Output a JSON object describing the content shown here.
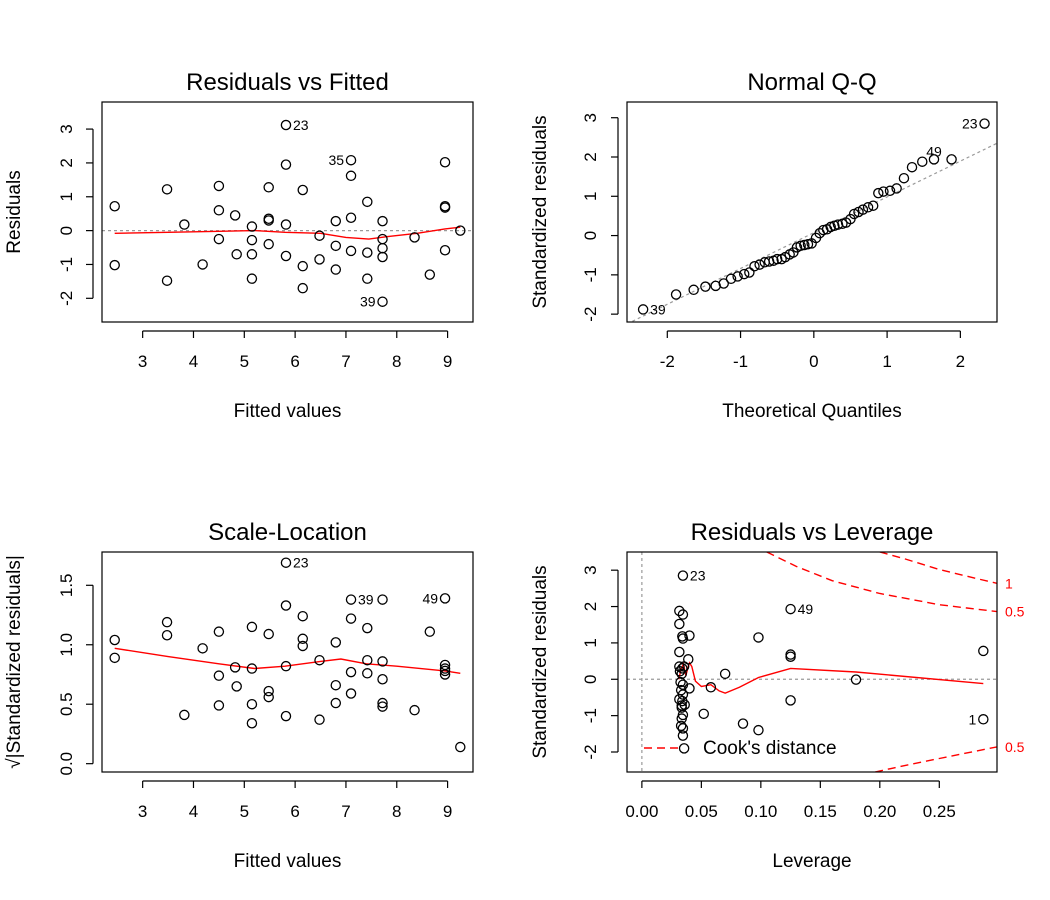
{
  "chart_data": [
    {
      "type": "scatter",
      "title": "Residuals vs Fitted",
      "xlabel": "Fitted values",
      "ylabel": "Residuals",
      "xlim": [
        2.2,
        9.5
      ],
      "ylim": [
        -2.7,
        3.8
      ],
      "xticks": [
        "3",
        "4",
        "5",
        "6",
        "7",
        "8",
        "9"
      ],
      "xtick_values": [
        3,
        4,
        5,
        6,
        7,
        8,
        9
      ],
      "yticks": [
        "-2",
        "-1",
        "0",
        "1",
        "2",
        "3"
      ],
      "ytick_values": [
        -2,
        -1,
        0,
        1,
        2,
        3
      ],
      "reference_line": {
        "type": "horizontal",
        "y": 0
      },
      "points": [
        [
          2.45,
          0.72
        ],
        [
          2.45,
          -1.02
        ],
        [
          3.48,
          1.22
        ],
        [
          3.48,
          -1.48
        ],
        [
          3.82,
          0.18
        ],
        [
          4.18,
          -1.0
        ],
        [
          4.5,
          1.32
        ],
        [
          4.5,
          0.6
        ],
        [
          4.5,
          -0.25
        ],
        [
          4.82,
          0.45
        ],
        [
          4.85,
          -0.7
        ],
        [
          5.15,
          0.12
        ],
        [
          5.15,
          -0.28
        ],
        [
          5.15,
          -0.7
        ],
        [
          5.15,
          -1.42
        ],
        [
          5.48,
          1.28
        ],
        [
          5.48,
          0.35
        ],
        [
          5.48,
          0.3
        ],
        [
          5.48,
          -0.4
        ],
        [
          5.82,
          3.12
        ],
        [
          5.82,
          1.95
        ],
        [
          5.82,
          0.18
        ],
        [
          5.82,
          -0.75
        ],
        [
          6.15,
          1.2
        ],
        [
          6.15,
          -1.05
        ],
        [
          6.15,
          -1.7
        ],
        [
          6.48,
          -0.15
        ],
        [
          6.48,
          -0.85
        ],
        [
          6.8,
          0.28
        ],
        [
          6.8,
          -0.45
        ],
        [
          6.8,
          -1.15
        ],
        [
          7.1,
          2.08
        ],
        [
          7.1,
          1.62
        ],
        [
          7.1,
          0.38
        ],
        [
          7.1,
          -0.6
        ],
        [
          7.42,
          0.85
        ],
        [
          7.42,
          -0.65
        ],
        [
          7.42,
          -1.42
        ],
        [
          7.72,
          0.28
        ],
        [
          7.72,
          -0.25
        ],
        [
          7.72,
          -0.52
        ],
        [
          7.72,
          -0.78
        ],
        [
          7.72,
          -2.1
        ],
        [
          8.35,
          -0.2
        ],
        [
          8.65,
          -1.3
        ],
        [
          8.95,
          2.02
        ],
        [
          8.95,
          0.72
        ],
        [
          8.95,
          0.68
        ],
        [
          8.95,
          -0.58
        ],
        [
          9.25,
          0.0
        ]
      ],
      "smoother": [
        [
          2.45,
          -0.08
        ],
        [
          3.5,
          -0.05
        ],
        [
          4.5,
          -0.02
        ],
        [
          5.2,
          0.0
        ],
        [
          5.8,
          -0.05
        ],
        [
          6.5,
          -0.08
        ],
        [
          7.0,
          -0.2
        ],
        [
          7.45,
          -0.25
        ],
        [
          7.8,
          -0.18
        ],
        [
          8.4,
          -0.08
        ],
        [
          8.95,
          0.05
        ],
        [
          9.25,
          0.1
        ]
      ],
      "point_labels": [
        {
          "text": "23",
          "x": 5.82,
          "y": 3.12,
          "side": "right"
        },
        {
          "text": "35",
          "x": 7.1,
          "y": 2.08,
          "side": "left"
        },
        {
          "text": "39",
          "x": 7.72,
          "y": -2.1,
          "side": "left"
        }
      ]
    },
    {
      "type": "scatter",
      "title": "Normal Q-Q",
      "xlabel": "Theoretical Quantiles",
      "ylabel": "Standardized residuals",
      "xlim": [
        -2.55,
        2.5
      ],
      "ylim": [
        -2.2,
        3.4
      ],
      "xticks": [
        "-2",
        "-1",
        "0",
        "1",
        "2"
      ],
      "xtick_values": [
        -2,
        -1,
        0,
        1,
        2
      ],
      "yticks": [
        "-2",
        "-1",
        "0",
        "1",
        "2",
        "3"
      ],
      "ytick_values": [
        -2,
        -1,
        0,
        1,
        2,
        3
      ],
      "reference_line": {
        "type": "diagonal",
        "x1": -2.55,
        "y1": -2.25,
        "x2": 2.5,
        "y2": 2.35
      },
      "points": [
        [
          -2.33,
          -1.88
        ],
        [
          -1.88,
          -1.5
        ],
        [
          -1.64,
          -1.38
        ],
        [
          -1.48,
          -1.3
        ],
        [
          -1.34,
          -1.28
        ],
        [
          -1.23,
          -1.22
        ],
        [
          -1.13,
          -1.1
        ],
        [
          -1.04,
          -1.04
        ],
        [
          -0.95,
          -0.98
        ],
        [
          -0.88,
          -0.94
        ],
        [
          -0.81,
          -0.78
        ],
        [
          -0.74,
          -0.74
        ],
        [
          -0.67,
          -0.68
        ],
        [
          -0.61,
          -0.66
        ],
        [
          -0.55,
          -0.64
        ],
        [
          -0.5,
          -0.6
        ],
        [
          -0.44,
          -0.6
        ],
        [
          -0.39,
          -0.55
        ],
        [
          -0.33,
          -0.48
        ],
        [
          -0.28,
          -0.43
        ],
        [
          -0.23,
          -0.3
        ],
        [
          -0.18,
          -0.26
        ],
        [
          -0.13,
          -0.24
        ],
        [
          -0.08,
          -0.22
        ],
        [
          -0.03,
          -0.2
        ],
        [
          0.03,
          -0.06
        ],
        [
          0.08,
          0.06
        ],
        [
          0.13,
          0.14
        ],
        [
          0.18,
          0.16
        ],
        [
          0.23,
          0.22
        ],
        [
          0.28,
          0.25
        ],
        [
          0.33,
          0.28
        ],
        [
          0.39,
          0.3
        ],
        [
          0.44,
          0.33
        ],
        [
          0.5,
          0.42
        ],
        [
          0.55,
          0.55
        ],
        [
          0.61,
          0.6
        ],
        [
          0.67,
          0.66
        ],
        [
          0.74,
          0.72
        ],
        [
          0.81,
          0.76
        ],
        [
          0.88,
          1.08
        ],
        [
          0.95,
          1.12
        ],
        [
          1.04,
          1.14
        ],
        [
          1.13,
          1.2
        ],
        [
          1.23,
          1.46
        ],
        [
          1.34,
          1.74
        ],
        [
          1.48,
          1.88
        ],
        [
          1.64,
          1.94
        ],
        [
          1.88,
          1.94
        ],
        [
          2.33,
          2.85
        ]
      ],
      "point_labels": [
        {
          "text": "23",
          "x": 2.33,
          "y": 2.85,
          "side": "left"
        },
        {
          "text": "49",
          "x": 1.64,
          "y": 1.94,
          "side": "above"
        },
        {
          "text": "39",
          "x": -2.33,
          "y": -1.88,
          "side": "right"
        }
      ]
    },
    {
      "type": "scatter",
      "title": "Scale-Location",
      "xlabel": "Fitted values",
      "ylabel": "√|Standardized residuals|",
      "xlim": [
        2.2,
        9.5
      ],
      "ylim": [
        -0.07,
        1.78
      ],
      "xticks": [
        "3",
        "4",
        "5",
        "6",
        "7",
        "8",
        "9"
      ],
      "xtick_values": [
        3,
        4,
        5,
        6,
        7,
        8,
        9
      ],
      "yticks": [
        "0.0",
        "0.5",
        "1.0",
        "1.5"
      ],
      "ytick_values": [
        0.0,
        0.5,
        1.0,
        1.5
      ],
      "points": [
        [
          2.45,
          1.04
        ],
        [
          2.45,
          0.89
        ],
        [
          3.48,
          1.19
        ],
        [
          3.48,
          1.08
        ],
        [
          3.82,
          0.41
        ],
        [
          4.18,
          0.97
        ],
        [
          4.5,
          1.11
        ],
        [
          4.5,
          0.74
        ],
        [
          4.5,
          0.49
        ],
        [
          4.82,
          0.81
        ],
        [
          4.85,
          0.65
        ],
        [
          5.15,
          0.34
        ],
        [
          5.15,
          0.5
        ],
        [
          5.15,
          0.8
        ],
        [
          5.15,
          1.15
        ],
        [
          5.48,
          1.09
        ],
        [
          5.48,
          0.61
        ],
        [
          5.48,
          0.56
        ],
        [
          5.82,
          1.69
        ],
        [
          5.82,
          1.33
        ],
        [
          5.82,
          0.82
        ],
        [
          5.82,
          0.4
        ],
        [
          6.15,
          1.24
        ],
        [
          6.15,
          1.05
        ],
        [
          6.15,
          0.99
        ],
        [
          6.48,
          0.87
        ],
        [
          6.48,
          0.37
        ],
        [
          6.8,
          1.02
        ],
        [
          6.8,
          0.66
        ],
        [
          6.8,
          0.51
        ],
        [
          7.1,
          1.38
        ],
        [
          7.1,
          1.22
        ],
        [
          7.1,
          0.77
        ],
        [
          7.1,
          0.59
        ],
        [
          7.42,
          1.14
        ],
        [
          7.42,
          0.87
        ],
        [
          7.42,
          0.76
        ],
        [
          7.72,
          1.38
        ],
        [
          7.72,
          0.86
        ],
        [
          7.72,
          0.71
        ],
        [
          7.72,
          0.51
        ],
        [
          7.72,
          0.48
        ],
        [
          8.35,
          0.45
        ],
        [
          8.65,
          1.11
        ],
        [
          8.95,
          1.39
        ],
        [
          8.95,
          0.83
        ],
        [
          8.95,
          0.8
        ],
        [
          8.95,
          0.78
        ],
        [
          8.95,
          0.75
        ],
        [
          9.25,
          0.14
        ]
      ],
      "smoother": [
        [
          2.45,
          0.97
        ],
        [
          3.5,
          0.9
        ],
        [
          4.5,
          0.84
        ],
        [
          5.2,
          0.8
        ],
        [
          5.8,
          0.82
        ],
        [
          6.5,
          0.86
        ],
        [
          6.9,
          0.88
        ],
        [
          7.4,
          0.84
        ],
        [
          8.0,
          0.82
        ],
        [
          8.95,
          0.78
        ],
        [
          9.25,
          0.76
        ]
      ],
      "point_labels": [
        {
          "text": "23",
          "x": 5.82,
          "y": 1.69,
          "side": "right"
        },
        {
          "text": "39",
          "x": 7.1,
          "y": 1.38,
          "side": "right"
        },
        {
          "text": "49",
          "x": 8.95,
          "y": 1.39,
          "side": "left"
        }
      ]
    },
    {
      "type": "scatter",
      "title": "Residuals vs Leverage",
      "xlabel": "Leverage",
      "ylabel": "Standardized residuals",
      "xlim": [
        -0.0125,
        0.2985
      ],
      "ylim": [
        -2.55,
        3.5
      ],
      "xticks": [
        "0.00",
        "0.05",
        "0.10",
        "0.15",
        "0.20",
        "0.25"
      ],
      "xtick_values": [
        0.0,
        0.05,
        0.1,
        0.15,
        0.2,
        0.25
      ],
      "yticks": [
        "-2",
        "-1",
        "0",
        "1",
        "2",
        "3"
      ],
      "ytick_values": [
        -2,
        -1,
        0,
        1,
        2,
        3
      ],
      "reference_line": {
        "type": "cross",
        "x": 0,
        "y": 0
      },
      "points": [
        [
          0.0345,
          2.85
        ],
        [
          0.0315,
          1.88
        ],
        [
          0.0345,
          1.78
        ],
        [
          0.0315,
          1.52
        ],
        [
          0.034,
          1.18
        ],
        [
          0.0345,
          1.12
        ],
        [
          0.04,
          1.2
        ],
        [
          0.0315,
          0.75
        ],
        [
          0.0315,
          0.35
        ],
        [
          0.034,
          0.3
        ],
        [
          0.0355,
          0.35
        ],
        [
          0.032,
          0.22
        ],
        [
          0.0335,
          0.15
        ],
        [
          0.0325,
          -0.08
        ],
        [
          0.0345,
          -0.15
        ],
        [
          0.033,
          -0.3
        ],
        [
          0.0345,
          -0.42
        ],
        [
          0.0315,
          -0.55
        ],
        [
          0.034,
          -0.6
        ],
        [
          0.0335,
          -0.72
        ],
        [
          0.036,
          -0.7
        ],
        [
          0.0335,
          -0.78
        ],
        [
          0.0345,
          -0.98
        ],
        [
          0.0335,
          -1.08
        ],
        [
          0.033,
          -1.28
        ],
        [
          0.0345,
          -1.35
        ],
        [
          0.0345,
          -1.55
        ],
        [
          0.0355,
          -1.9
        ],
        [
          0.039,
          0.55
        ],
        [
          0.04,
          -0.25
        ],
        [
          0.052,
          -0.95
        ],
        [
          0.058,
          -0.22
        ],
        [
          0.07,
          0.15
        ],
        [
          0.085,
          -1.22
        ],
        [
          0.098,
          -1.4
        ],
        [
          0.098,
          1.15
        ],
        [
          0.125,
          1.93
        ],
        [
          0.125,
          0.68
        ],
        [
          0.125,
          0.62
        ],
        [
          0.125,
          -0.58
        ],
        [
          0.18,
          -0.01
        ],
        [
          0.287,
          0.78
        ],
        [
          0.287,
          -1.1
        ]
      ],
      "smoother": [
        [
          0.031,
          0.0
        ],
        [
          0.033,
          0.28
        ],
        [
          0.035,
          0.42
        ],
        [
          0.037,
          0.1
        ],
        [
          0.0385,
          0.3
        ],
        [
          0.04,
          0.45
        ],
        [
          0.042,
          0.35
        ],
        [
          0.045,
          -0.05
        ],
        [
          0.05,
          -0.2
        ],
        [
          0.058,
          -0.15
        ],
        [
          0.065,
          -0.32
        ],
        [
          0.07,
          -0.38
        ],
        [
          0.082,
          -0.22
        ],
        [
          0.098,
          0.05
        ],
        [
          0.125,
          0.3
        ],
        [
          0.18,
          0.2
        ],
        [
          0.287,
          -0.12
        ]
      ],
      "cook_contours": [
        {
          "level": "1",
          "upper": [
            [
              0.2,
              3.5
            ],
            [
              0.22,
              3.32
            ],
            [
              0.25,
              3.02
            ],
            [
              0.28,
              2.78
            ],
            [
              0.2985,
              2.64
            ]
          ]
        },
        {
          "level": "0.5",
          "upper": [
            [
              0.105,
              3.5
            ],
            [
              0.13,
              3.1
            ],
            [
              0.16,
              2.71
            ],
            [
              0.2,
              2.36
            ],
            [
              0.25,
              2.05
            ],
            [
              0.2985,
              1.86
            ]
          ],
          "lower": [
            [
              0.196,
              -2.55
            ],
            [
              0.22,
              -2.38
            ],
            [
              0.25,
              -2.18
            ],
            [
              0.2985,
              -1.86
            ]
          ]
        }
      ],
      "contour_labels": [
        {
          "text": "1",
          "x": 0.2985,
          "y": 2.64
        },
        {
          "text": "0.5",
          "x": 0.2985,
          "y": 1.86
        },
        {
          "text": "0.5",
          "x": 0.2985,
          "y": -1.86
        }
      ],
      "legend": {
        "label": "Cook's distance",
        "position": "bottom-left"
      },
      "point_labels": [
        {
          "text": "23",
          "x": 0.0345,
          "y": 2.85,
          "side": "right"
        },
        {
          "text": "49",
          "x": 0.125,
          "y": 1.93,
          "side": "right"
        },
        {
          "text": "1",
          "x": 0.287,
          "y": -1.1,
          "side": "left"
        }
      ]
    }
  ]
}
